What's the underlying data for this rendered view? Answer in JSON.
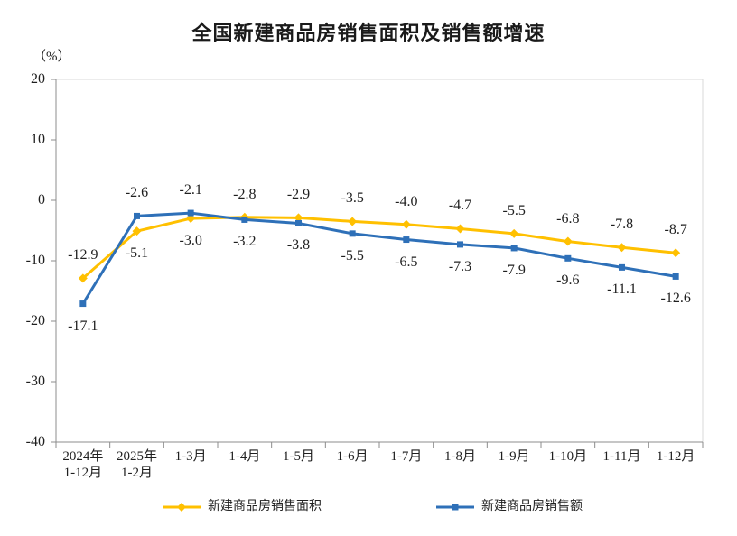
{
  "chart_data": {
    "type": "line",
    "title": "全国新建商品房销售面积及销售额增速",
    "ylabel": "（%）",
    "xlabel": "",
    "ylim": [
      -40,
      20
    ],
    "yticks": [
      20,
      10,
      0,
      -10,
      -20,
      -30,
      -40
    ],
    "grid": false,
    "legend_position": "bottom",
    "categories": [
      "2024年\n1-12月",
      "2025年\n1-2月",
      "1-3月",
      "1-4月",
      "1-5月",
      "1-6月",
      "1-7月",
      "1-8月",
      "1-9月",
      "1-10月",
      "1-11月",
      "1-12月"
    ],
    "series": [
      {
        "name": "新建商品房销售面积",
        "color": "#FFC000",
        "marker": "diamond",
        "values": [
          -12.9,
          -5.1,
          -3.0,
          -2.8,
          -2.9,
          -3.5,
          -4.0,
          -4.7,
          -5.5,
          -6.8,
          -7.8,
          -8.7
        ]
      },
      {
        "name": "新建商品房销售额",
        "color": "#2E70B8",
        "marker": "square",
        "values": [
          -17.1,
          -2.6,
          -2.1,
          -3.2,
          -3.8,
          -5.5,
          -6.5,
          -7.3,
          -7.9,
          -9.6,
          -11.1,
          -12.6
        ]
      }
    ]
  }
}
